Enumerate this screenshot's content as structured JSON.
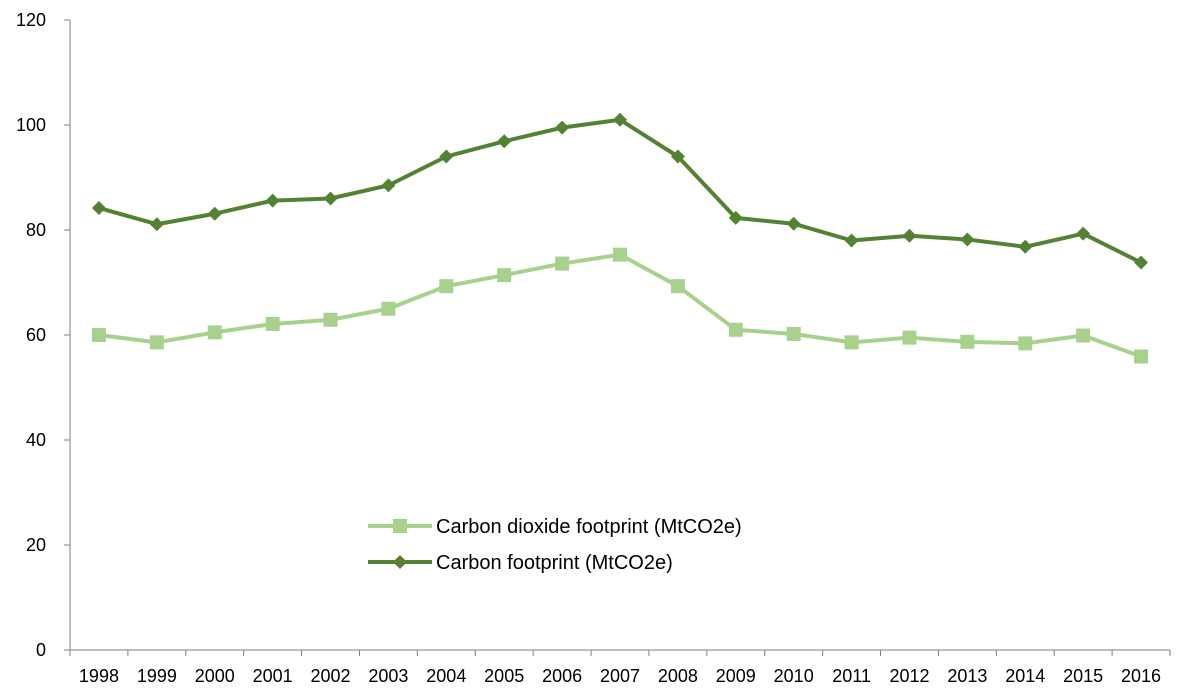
{
  "chart_data": {
    "type": "line",
    "title": "",
    "xlabel": "",
    "ylabel": "",
    "ylim": [
      0,
      120
    ],
    "y_ticks": [
      0,
      20,
      40,
      60,
      80,
      100,
      120
    ],
    "y_tick_labels": [
      "0",
      "20",
      "40",
      "60",
      "80",
      "100",
      "120"
    ],
    "grid": false,
    "legend_position": "center",
    "categories": [
      "1998",
      "1999",
      "2000",
      "2001",
      "2002",
      "2003",
      "2004",
      "2005",
      "2006",
      "2007",
      "2008",
      "2009",
      "2010",
      "2011",
      "2012",
      "2013",
      "2014",
      "2015",
      "2016"
    ],
    "series": [
      {
        "name": "Carbon dioxide footprint (MtCO2e)",
        "marker": "square",
        "color": "#a9d18e",
        "values": [
          60.0,
          58.6,
          60.5,
          62.1,
          62.9,
          65.0,
          69.3,
          71.4,
          73.6,
          75.3,
          69.3,
          61.0,
          60.2,
          58.6,
          59.5,
          58.7,
          58.4,
          59.9,
          55.9
        ]
      },
      {
        "name": "Carbon footprint (MtCO2e)",
        "marker": "diamond",
        "color": "#548235",
        "values": [
          84.2,
          81.1,
          83.1,
          85.6,
          86.0,
          88.5,
          94.0,
          96.9,
          99.5,
          101.0,
          94.0,
          82.3,
          81.2,
          78.0,
          78.9,
          78.2,
          76.8,
          79.3,
          73.8
        ]
      }
    ]
  }
}
